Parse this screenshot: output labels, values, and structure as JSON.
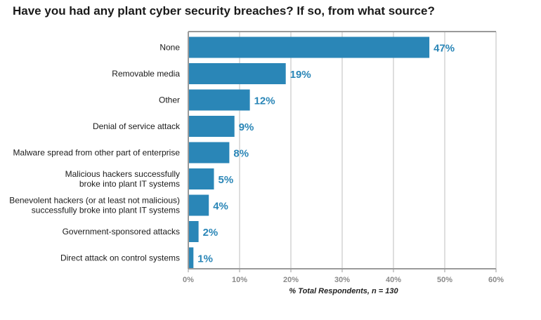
{
  "chart_data": {
    "type": "bar",
    "orientation": "horizontal",
    "title": "Have you had any plant cyber security breaches? If so, from what source?",
    "xlabel": "% Total Respondents, n = 130",
    "ylabel": "",
    "xlim": [
      0,
      60
    ],
    "ticks": [
      0,
      10,
      20,
      30,
      40,
      50,
      60
    ],
    "tick_labels": [
      "0%",
      "10%",
      "20%",
      "30%",
      "40%",
      "50%",
      "60%"
    ],
    "grid": true,
    "bar_color": "#2a86b7",
    "categories": [
      [
        "None"
      ],
      [
        "Removable media"
      ],
      [
        "Other"
      ],
      [
        "Denial of service attack"
      ],
      [
        "Malware spread from other part of enterprise"
      ],
      [
        "Malicious hackers successfully",
        "broke into plant IT systems"
      ],
      [
        "Benevolent hackers (or at least not malicious)",
        "successfully broke into plant IT systems"
      ],
      [
        "Government-sponsored attacks"
      ],
      [
        "Direct attack on control systems"
      ]
    ],
    "values": [
      47,
      19,
      12,
      9,
      8,
      5,
      4,
      2,
      1
    ],
    "value_labels": [
      "47%",
      "19%",
      "12%",
      "9%",
      "8%",
      "5%",
      "4%",
      "2%",
      "1%"
    ]
  }
}
